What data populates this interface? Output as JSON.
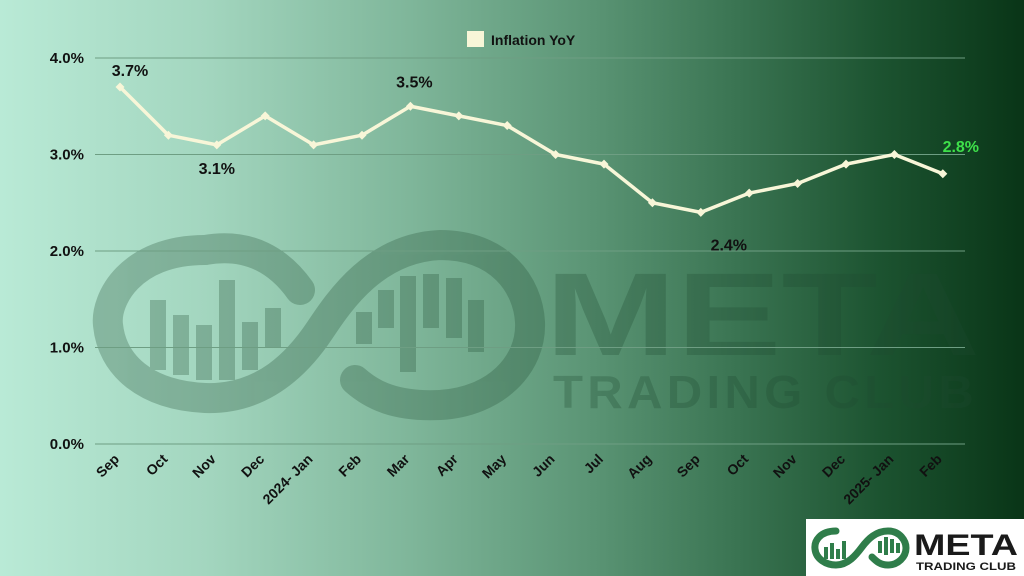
{
  "watermark": {
    "brand_big": "META",
    "brand_small": "TRADING CLUB"
  },
  "logo_badge": {
    "brand_big": "META",
    "brand_small": "TRADING CLUB"
  },
  "chart_data": {
    "type": "line",
    "title": "",
    "xlabel": "",
    "ylabel": "",
    "categories": [
      "Sep",
      "Oct",
      "Nov",
      "Dec",
      "2024- Jan",
      "Feb",
      "Mar",
      "Apr",
      "May",
      "Jun",
      "Jul",
      "Aug",
      "Sep",
      "Oct",
      "Nov",
      "Dec",
      "2025- Jan",
      "Feb"
    ],
    "series": [
      {
        "name": "Inflation YoY",
        "values": [
          3.7,
          3.2,
          3.1,
          3.4,
          3.1,
          3.2,
          3.5,
          3.4,
          3.3,
          3.0,
          2.9,
          2.5,
          2.4,
          2.6,
          2.7,
          2.9,
          3.0,
          2.8
        ]
      }
    ],
    "ylim": [
      0,
      4
    ],
    "yticks": [
      "0.0%",
      "1.0%",
      "2.0%",
      "3.0%",
      "4.0%"
    ],
    "grid": true,
    "legend": "top-center",
    "annotations": [
      {
        "index": 0,
        "text": "3.7%",
        "color": "#111111"
      },
      {
        "index": 2,
        "text": "3.1%",
        "color": "#111111"
      },
      {
        "index": 6,
        "text": "3.5%",
        "color": "#111111"
      },
      {
        "index": 12,
        "text": "2.4%",
        "color": "#111111"
      },
      {
        "index": 17,
        "text": "2.8%",
        "color": "#3ee04a"
      }
    ],
    "line_color": "#f8f6d8",
    "grid_color": "#6e9e83"
  }
}
